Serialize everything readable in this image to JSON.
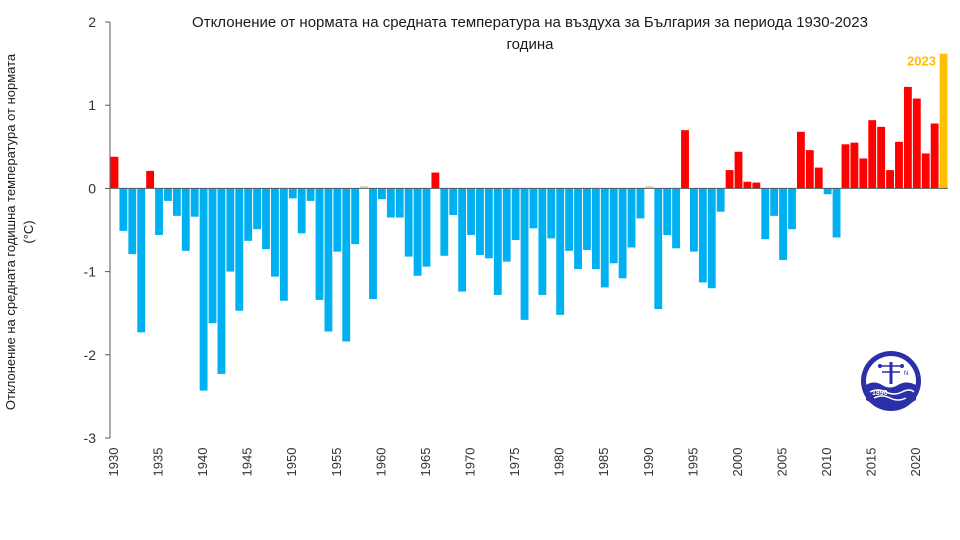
{
  "chart_data": {
    "type": "bar",
    "title_line1": "Отклонение от нормата на средната температура на въздуха за България за периода 1930-2023",
    "title_line2": "година",
    "ylabel_line1": "Отклонение на средната годишна температура от нормата",
    "ylabel_line2": "(°C)",
    "ylim": [
      -3,
      2
    ],
    "yticks": [
      "2",
      "1",
      "0",
      "-1",
      "-2",
      "-3"
    ],
    "xtick_labels": [
      "1930",
      "1935",
      "1940",
      "1945",
      "1950",
      "1955",
      "1960",
      "1965",
      "1970",
      "1975",
      "1980",
      "1985",
      "1990",
      "1995",
      "2000",
      "2005",
      "2010",
      "2015",
      "2020"
    ],
    "highlight_label": "2023",
    "colors": {
      "negative": "#00B0F0",
      "positive": "#FF0000",
      "near_zero": "#D9D9D9",
      "highlight": "#FFC000"
    },
    "years": [
      1930,
      1931,
      1932,
      1933,
      1934,
      1935,
      1936,
      1937,
      1938,
      1939,
      1940,
      1941,
      1942,
      1943,
      1944,
      1945,
      1946,
      1947,
      1948,
      1949,
      1950,
      1951,
      1952,
      1953,
      1954,
      1955,
      1956,
      1957,
      1958,
      1959,
      1960,
      1961,
      1962,
      1963,
      1964,
      1965,
      1966,
      1967,
      1968,
      1969,
      1970,
      1971,
      1972,
      1973,
      1974,
      1975,
      1976,
      1977,
      1978,
      1979,
      1980,
      1981,
      1982,
      1983,
      1984,
      1985,
      1986,
      1987,
      1988,
      1989,
      1990,
      1991,
      1992,
      1993,
      1994,
      1995,
      1996,
      1997,
      1998,
      1999,
      2000,
      2001,
      2002,
      2003,
      2004,
      2005,
      2006,
      2007,
      2008,
      2009,
      2010,
      2011,
      2012,
      2013,
      2014,
      2015,
      2016,
      2017,
      2018,
      2019,
      2020,
      2021,
      2022,
      2023
    ],
    "values": [
      0.38,
      -0.51,
      -0.79,
      -1.73,
      0.21,
      -0.56,
      -0.15,
      -0.33,
      -0.75,
      -0.34,
      -2.43,
      -1.62,
      -2.23,
      -1.0,
      -1.47,
      -0.63,
      -0.49,
      -0.73,
      -1.06,
      -1.35,
      -0.12,
      -0.54,
      -0.15,
      -1.34,
      -1.72,
      -0.76,
      -1.84,
      -0.67,
      0.03,
      -1.33,
      -0.13,
      -0.35,
      -0.35,
      -0.82,
      -1.05,
      -0.94,
      0.19,
      -0.81,
      -0.32,
      -1.24,
      -0.56,
      -0.8,
      -0.84,
      -1.28,
      -0.88,
      -0.62,
      -1.58,
      -0.48,
      -1.28,
      -0.6,
      -1.52,
      -0.75,
      -0.97,
      -0.74,
      -0.97,
      -1.19,
      -0.9,
      -1.08,
      -0.71,
      -0.36,
      0.03,
      -1.45,
      -0.56,
      -0.72,
      0.7,
      -0.76,
      -1.13,
      -1.2,
      -0.28,
      0.22,
      0.44,
      0.08,
      0.07,
      -0.61,
      -0.33,
      -0.86,
      -0.49,
      0.68,
      0.46,
      0.25,
      -0.07,
      -0.59,
      0.53,
      0.55,
      0.36,
      0.82,
      0.74,
      0.22,
      0.56,
      1.22,
      1.08,
      0.42,
      0.78,
      1.62
    ]
  }
}
